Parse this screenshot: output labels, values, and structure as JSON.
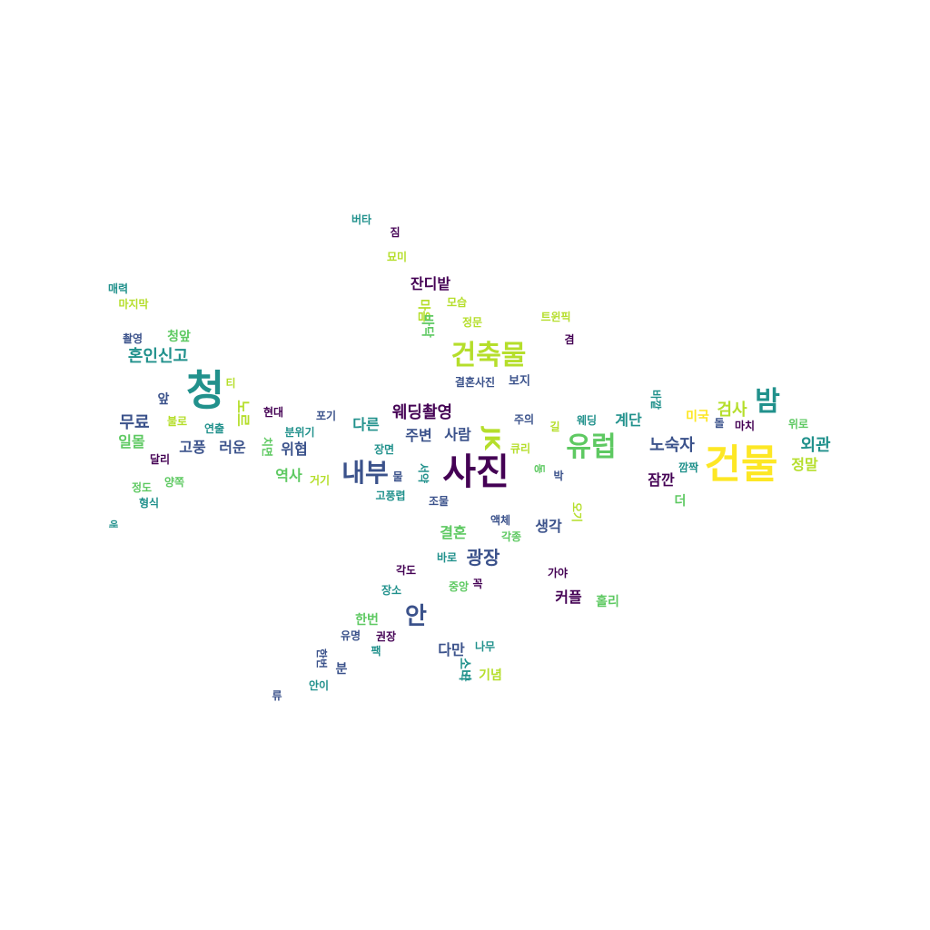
{
  "palette": {
    "dark_purple": "#440154",
    "indigo": "#3b528b",
    "teal": "#21918c",
    "green": "#5ec962",
    "yellow": "#fde725",
    "lime": "#b5de2b"
  },
  "words": [
    {
      "text": "사진",
      "color": "#440154",
      "vertical": false
    },
    {
      "text": "건물",
      "color": "#fde725",
      "vertical": false
    },
    {
      "text": "청",
      "color": "#21918c",
      "vertical": false
    },
    {
      "text": "건축물",
      "color": "#b5de2b",
      "vertical": false
    },
    {
      "text": "유럽",
      "color": "#5ec962",
      "vertical": false
    },
    {
      "text": "내부",
      "color": "#3b528b",
      "vertical": false
    },
    {
      "text": "밤",
      "color": "#21918c",
      "vertical": false
    },
    {
      "text": "안",
      "color": "#3b528b",
      "vertical": false
    },
    {
      "text": "광장",
      "color": "#3b528b",
      "vertical": false
    },
    {
      "text": "웨딩촬영",
      "color": "#440154",
      "vertical": false
    },
    {
      "text": "혼인신고",
      "color": "#21918c",
      "vertical": false
    },
    {
      "text": "무료",
      "color": "#3b528b",
      "vertical": false
    },
    {
      "text": "노숙자",
      "color": "#3b528b",
      "vertical": false
    },
    {
      "text": "외관",
      "color": "#21918c",
      "vertical": false
    },
    {
      "text": "검사",
      "color": "#b5de2b",
      "vertical": false
    },
    {
      "text": "사람",
      "color": "#3b528b",
      "vertical": false
    },
    {
      "text": "계단",
      "color": "#21918c",
      "vertical": false
    },
    {
      "text": "결혼",
      "color": "#5ec962",
      "vertical": false
    },
    {
      "text": "생각",
      "color": "#3b528b",
      "vertical": false
    },
    {
      "text": "커플",
      "color": "#440154",
      "vertical": false
    },
    {
      "text": "고풍",
      "color": "#3b528b",
      "vertical": false
    },
    {
      "text": "러운",
      "color": "#3b528b",
      "vertical": false
    },
    {
      "text": "위협",
      "color": "#3b528b",
      "vertical": false
    },
    {
      "text": "역사",
      "color": "#5ec962",
      "vertical": false
    },
    {
      "text": "잔디밭",
      "color": "#440154",
      "vertical": false
    },
    {
      "text": "일몰",
      "color": "#5ec962",
      "vertical": false
    },
    {
      "text": "다른",
      "color": "#21918c",
      "vertical": false
    },
    {
      "text": "주변",
      "color": "#3b528b",
      "vertical": false
    },
    {
      "text": "청앞",
      "color": "#5ec962",
      "vertical": false
    },
    {
      "text": "앞",
      "color": "#3b528b",
      "vertical": false
    },
    {
      "text": "정말",
      "color": "#b5de2b",
      "vertical": false
    },
    {
      "text": "잠깐",
      "color": "#440154",
      "vertical": false
    },
    {
      "text": "다만",
      "color": "#3b528b",
      "vertical": false
    },
    {
      "text": "한번",
      "color": "#5ec962",
      "vertical": false
    },
    {
      "text": "미국",
      "color": "#fde725",
      "vertical": false
    },
    {
      "text": "홀리",
      "color": "#5ec962",
      "vertical": false
    },
    {
      "text": "기념",
      "color": "#b5de2b",
      "vertical": false
    },
    {
      "text": "분",
      "color": "#3b528b",
      "vertical": false
    },
    {
      "text": "더",
      "color": "#5ec962",
      "vertical": false
    },
    {
      "text": "보지",
      "color": "#3b528b",
      "vertical": false
    },
    {
      "text": "결혼사진",
      "color": "#3b528b",
      "vertical": false
    },
    {
      "text": "현대",
      "color": "#440154",
      "vertical": false
    },
    {
      "text": "포기",
      "color": "#3b528b",
      "vertical": false
    },
    {
      "text": "분위기",
      "color": "#21918c",
      "vertical": false
    },
    {
      "text": "연출",
      "color": "#21918c",
      "vertical": false
    },
    {
      "text": "불로",
      "color": "#b5de2b",
      "vertical": false
    },
    {
      "text": "달리",
      "color": "#440154",
      "vertical": false
    },
    {
      "text": "장면",
      "color": "#21918c",
      "vertical": false
    },
    {
      "text": "거기",
      "color": "#b5de2b",
      "vertical": false
    },
    {
      "text": "물",
      "color": "#3b528b",
      "vertical": false
    },
    {
      "text": "고풍렵",
      "color": "#21918c",
      "vertical": false
    },
    {
      "text": "조물",
      "color": "#3b528b",
      "vertical": false
    },
    {
      "text": "큐리",
      "color": "#b5de2b",
      "vertical": false
    },
    {
      "text": "길",
      "color": "#b5de2b",
      "vertical": false
    },
    {
      "text": "주의",
      "color": "#3b528b",
      "vertical": false
    },
    {
      "text": "웨딩",
      "color": "#21918c",
      "vertical": false
    },
    {
      "text": "돌",
      "color": "#3b528b",
      "vertical": false
    },
    {
      "text": "마치",
      "color": "#440154",
      "vertical": false
    },
    {
      "text": "위로",
      "color": "#5ec962",
      "vertical": false
    },
    {
      "text": "깜짝",
      "color": "#21918c",
      "vertical": false
    },
    {
      "text": "박",
      "color": "#3b528b",
      "vertical": false
    },
    {
      "text": "액체",
      "color": "#3b528b",
      "vertical": false
    },
    {
      "text": "각종",
      "color": "#5ec962",
      "vertical": false
    },
    {
      "text": "바로",
      "color": "#21918c",
      "vertical": false
    },
    {
      "text": "각도",
      "color": "#440154",
      "vertical": false
    },
    {
      "text": "가야",
      "color": "#440154",
      "vertical": false
    },
    {
      "text": "장소",
      "color": "#21918c",
      "vertical": false
    },
    {
      "text": "중앙",
      "color": "#5ec962",
      "vertical": false
    },
    {
      "text": "꼭",
      "color": "#440154",
      "vertical": false
    },
    {
      "text": "유명",
      "color": "#3b528b",
      "vertical": false
    },
    {
      "text": "권장",
      "color": "#440154",
      "vertical": false
    },
    {
      "text": "팩",
      "color": "#21918c",
      "vertical": false
    },
    {
      "text": "나무",
      "color": "#21918c",
      "vertical": false
    },
    {
      "text": "안이",
      "color": "#21918c",
      "vertical": false
    },
    {
      "text": "류",
      "color": "#3b528b",
      "vertical": false
    },
    {
      "text": "모습",
      "color": "#b5de2b",
      "vertical": false
    },
    {
      "text": "정문",
      "color": "#b5de2b",
      "vertical": false
    },
    {
      "text": "트윈픽",
      "color": "#b5de2b",
      "vertical": false
    },
    {
      "text": "겸",
      "color": "#440154",
      "vertical": false
    },
    {
      "text": "묘미",
      "color": "#b5de2b",
      "vertical": false
    },
    {
      "text": "짐",
      "color": "#440154",
      "vertical": false
    },
    {
      "text": "버타",
      "color": "#21918c",
      "vertical": false
    },
    {
      "text": "매력",
      "color": "#21918c",
      "vertical": false
    },
    {
      "text": "마지막",
      "color": "#b5de2b",
      "vertical": false
    },
    {
      "text": "촬영",
      "color": "#3b528b",
      "vertical": false
    },
    {
      "text": "티",
      "color": "#b5de2b",
      "vertical": false
    },
    {
      "text": "정도",
      "color": "#5ec962",
      "vertical": false
    },
    {
      "text": "양쪽",
      "color": "#5ec962",
      "vertical": false
    },
    {
      "text": "형식",
      "color": "#21918c",
      "vertical": false
    },
    {
      "text": "JK",
      "color": "#b5de2b",
      "vertical": true
    },
    {
      "text": "동",
      "color": "#5ec962",
      "vertical": true
    },
    {
      "text": "서약",
      "color": "#21918c",
      "vertical": true
    },
    {
      "text": "치면",
      "color": "#5ec962",
      "vertical": true
    },
    {
      "text": "노르",
      "color": "#b5de2b",
      "vertical": true
    },
    {
      "text": "마음",
      "color": "#b5de2b",
      "vertical": true
    },
    {
      "text": "바닥",
      "color": "#5ec962",
      "vertical": true
    },
    {
      "text": "한번",
      "color": "#3b528b",
      "vertical": true
    },
    {
      "text": "소비",
      "color": "#21918c",
      "vertical": true
    },
    {
      "text": "오기",
      "color": "#b5de2b",
      "vertical": true
    },
    {
      "text": "애",
      "color": "#21918c",
      "vertical": true
    },
    {
      "text": "바깥",
      "color": "#21918c",
      "vertical": true
    },
    {
      "text": "근",
      "color": "#21918c",
      "vertical": true
    }
  ]
}
